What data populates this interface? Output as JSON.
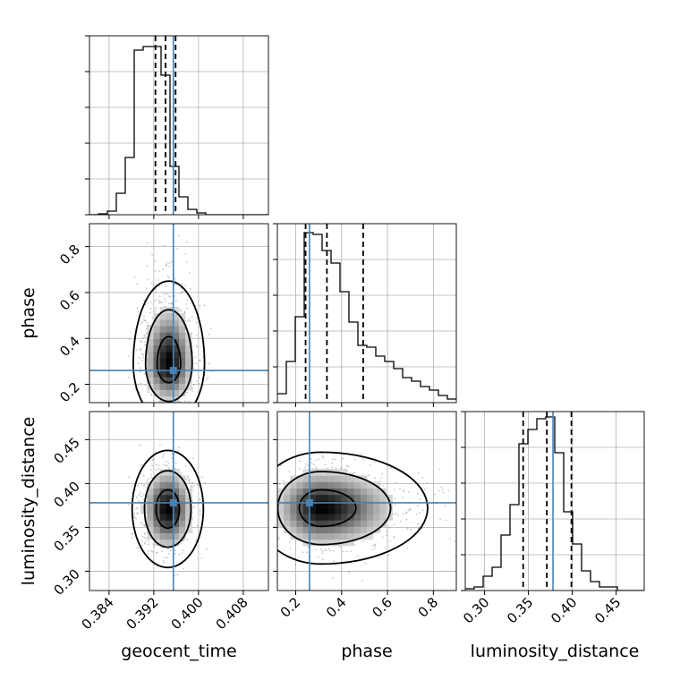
{
  "chart_data": {
    "type": "corner",
    "parameters": [
      "geocent_time",
      "phase",
      "luminosity_distance"
    ],
    "truths": {
      "geocent_time": 0.3955,
      "phase": 0.26,
      "luminosity_distance": 0.378
    },
    "quantiles": {
      "geocent_time": [
        0.3923,
        0.3941,
        0.3959
      ],
      "phase": [
        0.243,
        0.336,
        0.494
      ],
      "luminosity_distance": [
        0.344,
        0.371,
        0.399
      ]
    },
    "axes": {
      "geocent_time": {
        "range": [
          0.3805,
          0.4125
        ],
        "ticks": [
          0.384,
          0.392,
          0.4,
          0.408
        ],
        "tick_labels": [
          "0.384",
          "0.392",
          "0.400",
          "0.408"
        ]
      },
      "phase": {
        "range": [
          0.12,
          0.9
        ],
        "ticks": [
          0.2,
          0.4,
          0.6,
          0.8
        ],
        "tick_labels": [
          "0.2",
          "0.4",
          "0.6",
          "0.8"
        ]
      },
      "luminosity_distance": {
        "range": [
          0.278,
          0.482
        ],
        "ticks": [
          0.3,
          0.35,
          0.4,
          0.45
        ],
        "tick_labels": [
          "0.30",
          "0.35",
          "0.40",
          "0.45"
        ]
      }
    },
    "histograms": {
      "geocent_time": {
        "edges_start": 0.3805,
        "bin_width": 0.0016,
        "counts": [
          0,
          0.005,
          0.02,
          0.12,
          0.32,
          0.92,
          0.94,
          0.94,
          0.78,
          0.27,
          0.1,
          0.03,
          0.01,
          0,
          0,
          0,
          0,
          0,
          0,
          0
        ]
      },
      "phase": {
        "edges_start": 0.12,
        "bin_width": 0.039,
        "counts": [
          0.05,
          0.23,
          0.48,
          0.95,
          0.94,
          0.85,
          0.78,
          0.62,
          0.45,
          0.32,
          0.31,
          0.26,
          0.23,
          0.19,
          0.14,
          0.12,
          0.09,
          0.07,
          0.04,
          0.02
        ]
      },
      "luminosity_distance": {
        "edges_start": 0.278,
        "bin_width": 0.0102,
        "counts": [
          0.01,
          0.02,
          0.08,
          0.13,
          0.31,
          0.48,
          0.82,
          0.9,
          0.96,
          0.97,
          0.77,
          0.44,
          0.26,
          0.11,
          0.05,
          0.02,
          0.02,
          0,
          0,
          0
        ]
      }
    },
    "posterior_2d": {
      "phase_vs_geocent_time": {
        "mode": [
          0.3947,
          0.29
        ],
        "sigma": [
          0.0021,
          0.083
        ]
      },
      "luminosity_distance_vs_geocent_time": {
        "mode": [
          0.3945,
          0.371
        ],
        "sigma": [
          0.0021,
          0.022
        ]
      },
      "luminosity_distance_vs_phase": {
        "mode": [
          0.31,
          0.372
        ],
        "sigma": [
          0.095,
          0.021
        ]
      }
    },
    "contour_levels": [
      0.39,
      0.86,
      0.99
    ],
    "grid": true,
    "colors": {
      "truth": "#4682b4",
      "hist": "#000000",
      "scatter": "#7f7f7f",
      "grid": "#b0b0b0"
    }
  }
}
